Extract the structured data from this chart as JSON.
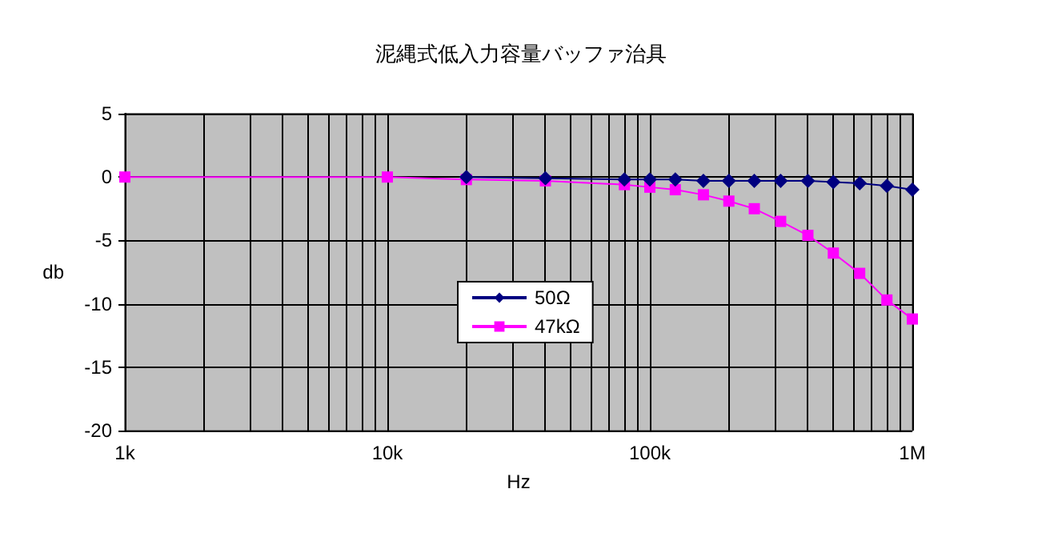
{
  "chart_data": {
    "type": "line",
    "title": "泥縄式低入力容量バッファ治具",
    "xlabel": "Hz",
    "ylabel": "db",
    "log": "x",
    "xlim": [
      1000,
      1000000
    ],
    "xticks": [
      {
        "value": 1000,
        "label": "1k"
      },
      {
        "value": 2000,
        "label": null
      },
      {
        "value": 3000,
        "label": null
      },
      {
        "value": 4000,
        "label": null
      },
      {
        "value": 5000,
        "label": null
      },
      {
        "value": 6000,
        "label": null
      },
      {
        "value": 7000,
        "label": null
      },
      {
        "value": 8000,
        "label": null
      },
      {
        "value": 9000,
        "label": null
      },
      {
        "value": 10000,
        "label": "10k"
      },
      {
        "value": 20000,
        "label": null
      },
      {
        "value": 30000,
        "label": null
      },
      {
        "value": 40000,
        "label": null
      },
      {
        "value": 50000,
        "label": null
      },
      {
        "value": 60000,
        "label": null
      },
      {
        "value": 70000,
        "label": null
      },
      {
        "value": 80000,
        "label": null
      },
      {
        "value": 90000,
        "label": null
      },
      {
        "value": 100000,
        "label": "100k"
      },
      {
        "value": 200000,
        "label": null
      },
      {
        "value": 300000,
        "label": null
      },
      {
        "value": 400000,
        "label": null
      },
      {
        "value": 500000,
        "label": null
      },
      {
        "value": 600000,
        "label": null
      },
      {
        "value": 700000,
        "label": null
      },
      {
        "value": 800000,
        "label": null
      },
      {
        "value": 900000,
        "label": null
      },
      {
        "value": 1000000,
        "label": "1M"
      }
    ],
    "ylim": [
      -20,
      5
    ],
    "yticks": [
      -20,
      -15,
      -10,
      -5,
      0,
      5
    ],
    "grid": true,
    "legend": "center",
    "x": [
      1000,
      10000,
      20000,
      40000,
      80000,
      100000,
      125000,
      160000,
      200000,
      250000,
      315000,
      400000,
      500000,
      630000,
      800000,
      1000000
    ],
    "series": [
      {
        "name": "50Ω",
        "color": "#000080",
        "marker": "diamond",
        "values": [
          null,
          null,
          0,
          -0.1,
          -0.2,
          -0.2,
          -0.2,
          -0.3,
          -0.3,
          -0.3,
          -0.3,
          -0.3,
          -0.4,
          -0.5,
          -0.7,
          -1.0
        ]
      },
      {
        "name": "47kΩ",
        "color": "#ff00ff",
        "marker": "square",
        "values": [
          0,
          0,
          -0.2,
          -0.3,
          -0.6,
          -0.8,
          -1.0,
          -1.4,
          -1.9,
          -2.5,
          -3.5,
          -4.6,
          -6.0,
          -7.6,
          -9.7,
          -11.2
        ]
      }
    ]
  }
}
